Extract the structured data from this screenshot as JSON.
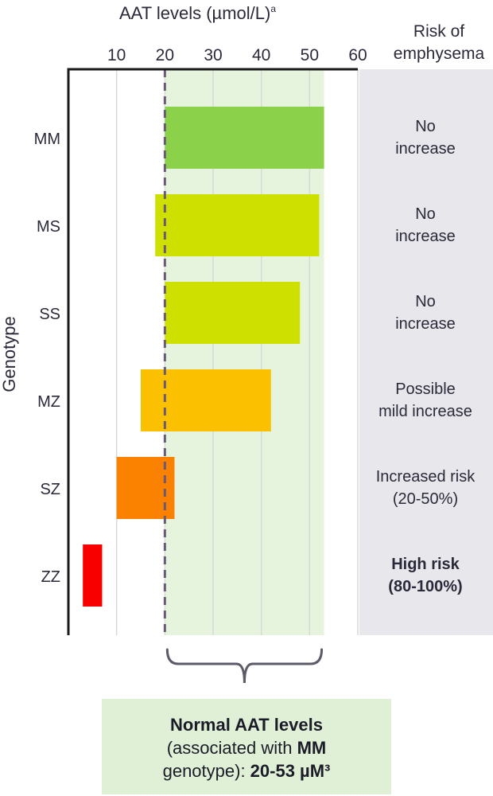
{
  "chart_data": {
    "type": "bar",
    "orientation": "horizontal",
    "subtype": "floating-range",
    "title": "AAT levels (µmol/L)",
    "title_footnote": "a",
    "ylabel": "Genotype",
    "xlim": [
      0,
      60
    ],
    "xticks": [
      10,
      20,
      30,
      40,
      50,
      60
    ],
    "grid": true,
    "categories": [
      "MM",
      "MS",
      "SS",
      "MZ",
      "SZ",
      "ZZ"
    ],
    "ranges": [
      {
        "genotype": "MM",
        "low": 20,
        "high": 53,
        "color": "#8bd14a"
      },
      {
        "genotype": "MS",
        "low": 18,
        "high": 52,
        "color": "#cde000"
      },
      {
        "genotype": "SS",
        "low": 20,
        "high": 48,
        "color": "#cde000"
      },
      {
        "genotype": "MZ",
        "low": 15,
        "high": 42,
        "color": "#fbc000"
      },
      {
        "genotype": "SZ",
        "low": 10,
        "high": 22,
        "color": "#fa8200"
      },
      {
        "genotype": "ZZ",
        "low": 3,
        "high": 7,
        "color": "#f80000"
      }
    ],
    "normal_range": {
      "low": 20,
      "high": 53,
      "color": "#e7f4dd"
    },
    "risk_column_title": [
      "Risk of",
      "emphysema"
    ],
    "risk": [
      {
        "genotype": "MM",
        "lines": [
          "No",
          "increase"
        ],
        "bold": false
      },
      {
        "genotype": "MS",
        "lines": [
          "No",
          "increase"
        ],
        "bold": false
      },
      {
        "genotype": "SS",
        "lines": [
          "No",
          "increase"
        ],
        "bold": false
      },
      {
        "genotype": "MZ",
        "lines": [
          "Possible",
          "mild increase"
        ],
        "bold": false
      },
      {
        "genotype": "SZ",
        "lines": [
          "Increased risk",
          "(20-50%)"
        ],
        "bold": false
      },
      {
        "genotype": "ZZ",
        "lines": [
          "High risk",
          "(80-100%)"
        ],
        "bold": true
      }
    ]
  },
  "callout": {
    "title": "Normal AAT levels",
    "line2_prefix": "(associated with ",
    "line2_bold": "MM",
    "line3_prefix": "genotype): ",
    "line3_bold": "20-53 µM³"
  },
  "colors": {
    "axis": "#1a1a1a",
    "grid": "#d8d8d8",
    "dashed_line": "#6a5a78",
    "risk_panel": "#e8e8ec",
    "bracket": "#5a5a68"
  }
}
